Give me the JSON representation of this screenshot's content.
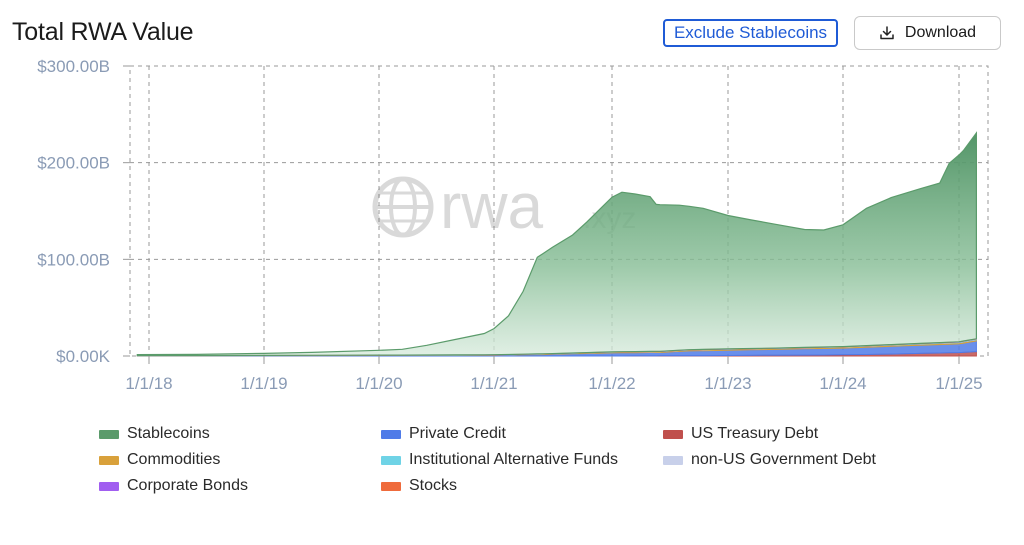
{
  "header": {
    "title": "Total RWA Value",
    "exclude_label": "Exclude Stablecoins",
    "download_label": "Download"
  },
  "watermark": {
    "text": "rwa",
    "suffix": ".xyz"
  },
  "chart_data": {
    "type": "area",
    "title": "Total RWA Value",
    "xlabel": "",
    "ylabel": "",
    "x_ticks": [
      "1/1/18",
      "1/1/19",
      "1/1/20",
      "1/1/21",
      "1/1/22",
      "1/1/23",
      "1/1/24",
      "1/1/25"
    ],
    "y_ticks": [
      "$0.00K",
      "$100.00B",
      "$200.00B",
      "$300.00B"
    ],
    "x_range": [
      "2018-01-01",
      "2025-03-01"
    ],
    "ylim": [
      0,
      300
    ],
    "grid": true,
    "stacked": true,
    "legend_position": "bottom",
    "units": "billions USD",
    "series": [
      {
        "name": "Stablecoins",
        "color": "#5b9b6b",
        "points": [
          [
            "2017-11-25",
            1
          ],
          [
            "2018-06-01",
            1.2
          ],
          [
            "2019-01-01",
            2
          ],
          [
            "2019-06-01",
            3
          ],
          [
            "2020-01-01",
            5
          ],
          [
            "2020-03-15",
            6
          ],
          [
            "2020-06-01",
            10
          ],
          [
            "2020-09-01",
            16
          ],
          [
            "2020-12-01",
            22
          ],
          [
            "2021-01-01",
            27
          ],
          [
            "2021-02-15",
            40
          ],
          [
            "2021-04-01",
            65
          ],
          [
            "2021-05-15",
            100
          ],
          [
            "2021-07-01",
            110
          ],
          [
            "2021-09-01",
            122
          ],
          [
            "2021-10-15",
            135
          ],
          [
            "2021-12-01",
            150
          ],
          [
            "2022-01-01",
            160
          ],
          [
            "2022-02-01",
            165
          ],
          [
            "2022-03-15",
            163
          ],
          [
            "2022-05-01",
            160
          ],
          [
            "2022-05-20",
            152
          ],
          [
            "2022-08-01",
            150
          ],
          [
            "2022-10-15",
            146
          ],
          [
            "2023-01-01",
            138
          ],
          [
            "2023-03-15",
            133
          ],
          [
            "2023-06-01",
            128
          ],
          [
            "2023-09-01",
            122
          ],
          [
            "2023-11-01",
            121
          ],
          [
            "2024-01-01",
            126
          ],
          [
            "2024-03-15",
            142
          ],
          [
            "2024-06-01",
            152
          ],
          [
            "2024-09-01",
            160
          ],
          [
            "2024-11-01",
            165
          ],
          [
            "2024-12-01",
            185
          ],
          [
            "2025-01-15",
            197
          ],
          [
            "2025-02-25",
            213
          ]
        ]
      },
      {
        "name": "Private Credit",
        "color": "#4f7be8",
        "points": [
          [
            "2017-11-25",
            0.3
          ],
          [
            "2020-01-01",
            0.5
          ],
          [
            "2021-01-01",
            0.8
          ],
          [
            "2021-06-01",
            1.5
          ],
          [
            "2022-01-01",
            3.2
          ],
          [
            "2022-06-01",
            3.5
          ],
          [
            "2022-09-01",
            5
          ],
          [
            "2023-01-01",
            5.5
          ],
          [
            "2023-06-01",
            6
          ],
          [
            "2024-01-01",
            7
          ],
          [
            "2024-06-01",
            8
          ],
          [
            "2025-01-01",
            9
          ],
          [
            "2025-02-25",
            11
          ]
        ]
      },
      {
        "name": "US Treasury Debt",
        "color": "#c0504d",
        "points": [
          [
            "2017-11-25",
            0
          ],
          [
            "2022-01-01",
            0
          ],
          [
            "2022-10-01",
            0.3
          ],
          [
            "2023-01-01",
            0.5
          ],
          [
            "2023-06-01",
            0.8
          ],
          [
            "2024-01-01",
            1.2
          ],
          [
            "2024-06-01",
            2.0
          ],
          [
            "2025-01-01",
            3.5
          ],
          [
            "2025-02-25",
            4.5
          ]
        ]
      },
      {
        "name": "Commodities",
        "color": "#d9a13b",
        "points": [
          [
            "2017-11-25",
            0.1
          ],
          [
            "2021-01-01",
            0.3
          ],
          [
            "2022-01-01",
            0.8
          ],
          [
            "2023-01-01",
            1.0
          ],
          [
            "2024-01-01",
            1.1
          ],
          [
            "2025-02-25",
            1.3
          ]
        ]
      },
      {
        "name": "Institutional Alternative Funds",
        "color": "#6fd3e6",
        "points": [
          [
            "2017-11-25",
            0
          ],
          [
            "2024-01-01",
            0
          ],
          [
            "2024-06-01",
            0.2
          ],
          [
            "2025-02-25",
            0.5
          ]
        ]
      },
      {
        "name": "non-US Government Debt",
        "color": "#c8d0ea",
        "points": [
          [
            "2017-11-25",
            0
          ],
          [
            "2025-02-25",
            0.2
          ]
        ]
      },
      {
        "name": "Corporate Bonds",
        "color": "#a15ef0",
        "points": [
          [
            "2017-11-25",
            0
          ],
          [
            "2025-02-25",
            0.2
          ]
        ]
      },
      {
        "name": "Stocks",
        "color": "#ef6b3c",
        "points": [
          [
            "2017-11-25",
            0
          ],
          [
            "2025-02-25",
            0.1
          ]
        ]
      }
    ]
  }
}
